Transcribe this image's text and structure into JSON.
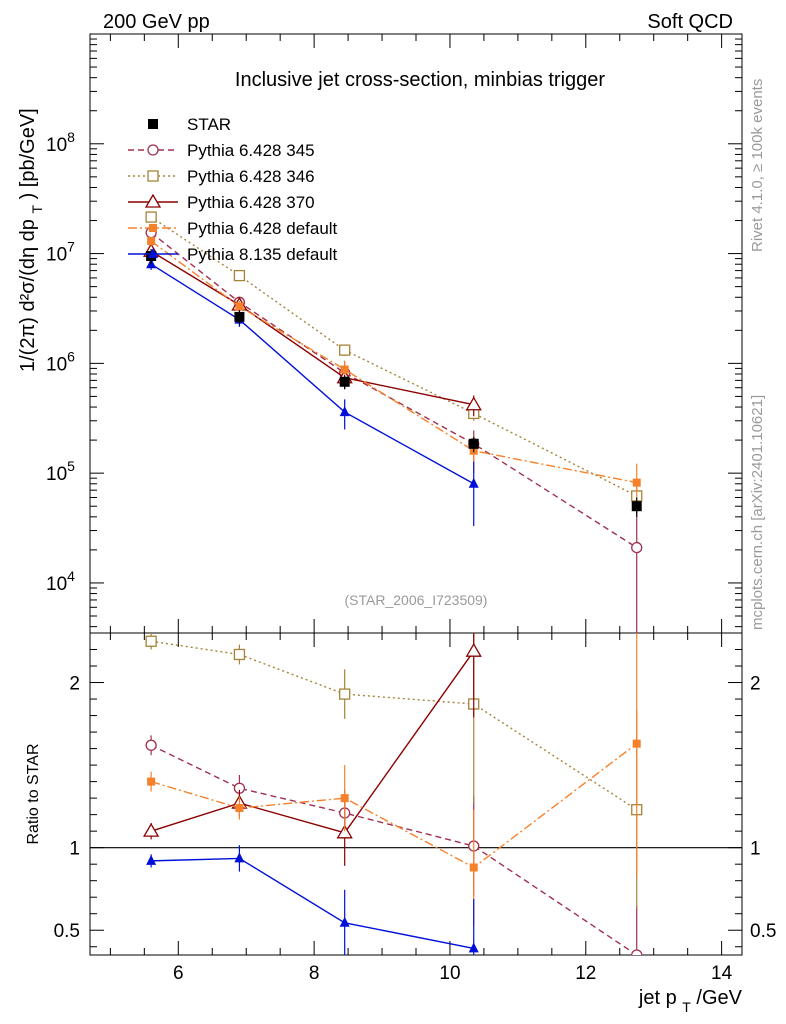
{
  "header": {
    "left": "200 GeV pp",
    "right": "Soft QCD"
  },
  "side_labels": {
    "rivet": "Rivet 4.1.0, ≥ 100k events",
    "mcplots": "mcplots.cern.ch [arXiv:2401.10621]"
  },
  "analysis_id": "(STAR_2006_I723509)",
  "colors": {
    "data": "#000000",
    "p345": "#a0304f",
    "p346": "#a68339",
    "p370": "#8b0000",
    "p6def": "#f7812a",
    "p8def": "#0010d8"
  },
  "chart_data": [
    {
      "type": "line",
      "title": "Inclusive jet cross-section, minbias trigger",
      "ylabel_prefix": "1/(2π)",
      "ylabel_main": "d²σ/(dη dp",
      "ylabel_sub": "T",
      "ylabel_suffix": ") [pb/GeV]",
      "yscale": "log",
      "xlim": [
        4.7,
        14.3
      ],
      "ylim": [
        3500,
        1000000000
      ],
      "yticks_labels": [
        {
          "v": 10000,
          "base": "10",
          "exp": "4"
        },
        {
          "v": 100000,
          "base": "10",
          "exp": "5"
        },
        {
          "v": 1000000,
          "base": "10",
          "exp": "6"
        },
        {
          "v": 10000000,
          "base": "10",
          "exp": "7"
        },
        {
          "v": 100000000,
          "base": "10",
          "exp": "8"
        }
      ],
      "legend_position": "top-left",
      "series": [
        {
          "key": "data",
          "name": "STAR",
          "marker": "filled-square",
          "dash": "none",
          "x": [
            5.6,
            6.9,
            8.45,
            10.35,
            12.75
          ],
          "y": [
            9500000,
            2650000,
            680000,
            185000,
            50000
          ],
          "err": [
            1500000,
            400000,
            100000,
            30000,
            10000
          ]
        },
        {
          "key": "p345",
          "name": "Pythia 6.428 345",
          "marker": "open-circle",
          "dash": "6,4",
          "x": [
            5.6,
            6.9,
            8.45,
            10.35,
            12.75
          ],
          "y": [
            15500000,
            3600000,
            820000,
            185000,
            21000
          ],
          "err": [
            1500000,
            450000,
            200000,
            60000,
            20000
          ]
        },
        {
          "key": "p346",
          "name": "Pythia 6.428 346",
          "marker": "open-square",
          "dash": "2,3",
          "x": [
            5.6,
            6.9,
            8.45,
            10.35,
            12.75
          ],
          "y": [
            21500000,
            6300000,
            1320000,
            350000,
            62000
          ],
          "err": [
            1000000,
            350000,
            150000,
            50000,
            20000
          ]
        },
        {
          "key": "p370",
          "name": "Pythia 6.428 370",
          "marker": "open-triangle",
          "dash": "none",
          "x": [
            5.6,
            6.9,
            8.45,
            10.35
          ],
          "y": [
            10500000,
            3400000,
            740000,
            420000
          ],
          "err": [
            800000,
            350000,
            150000,
            90000
          ]
        },
        {
          "key": "p6def",
          "name": "Pythia 6.428 default",
          "marker": "filled-square-small",
          "dash": "9,3,2,3",
          "x": [
            5.6,
            6.9,
            8.45,
            10.35,
            12.75
          ],
          "y": [
            13000000,
            3300000,
            880000,
            160000,
            82000
          ],
          "err": [
            1200000,
            400000,
            180000,
            60000,
            40000
          ]
        },
        {
          "key": "p8def",
          "name": "Pythia 8.135 default",
          "marker": "filled-triangle",
          "dash": "none",
          "x": [
            5.6,
            6.9,
            8.45,
            10.35
          ],
          "y": [
            8000000,
            2500000,
            360000,
            80000
          ],
          "err": [
            900000,
            350000,
            110000,
            47000
          ]
        }
      ]
    },
    {
      "type": "line",
      "ylabel": "Ratio to STAR",
      "xlabel_main": "jet p",
      "xlabel_sub": "T",
      "xlabel_suffix": "/GeV",
      "xlim": [
        4.7,
        14.3
      ],
      "ylim": [
        0.35,
        2.3
      ],
      "xticks": [
        "6",
        "8",
        "10",
        "12",
        "14"
      ],
      "yticks": [
        "0.5",
        "1",
        "2"
      ],
      "reference_line": 1.0,
      "series": [
        {
          "key": "p345",
          "name": "Pythia 6.428 345",
          "marker": "open-circle",
          "dash": "6,4",
          "x": [
            5.6,
            6.9,
            8.45,
            10.35,
            12.75
          ],
          "y": [
            1.62,
            1.36,
            1.21,
            1.01,
            0.35
          ],
          "err_lo": [
            0.06,
            0.08,
            0.14,
            0.3,
            0.3
          ],
          "err_hi": [
            0.06,
            0.08,
            0.14,
            0.3,
            0.3
          ]
        },
        {
          "key": "p346",
          "name": "Pythia 6.428 346",
          "marker": "open-square",
          "dash": "2,3",
          "x": [
            5.6,
            6.9,
            8.45,
            10.35,
            12.75
          ],
          "y": [
            2.25,
            2.17,
            1.93,
            1.87,
            1.23
          ],
          "err_lo": [
            0.05,
            0.06,
            0.15,
            0.6,
            0.6
          ],
          "err_hi": [
            0.05,
            0.06,
            0.15,
            0.6,
            0.6
          ]
        },
        {
          "key": "p370",
          "name": "Pythia 6.428 370",
          "marker": "open-triangle",
          "dash": "none",
          "x": [
            5.6,
            6.9,
            8.45,
            10.35
          ],
          "y": [
            1.1,
            1.27,
            1.09,
            2.19
          ],
          "err_lo": [
            0.05,
            0.08,
            0.2,
            0.4
          ],
          "err_hi": [
            0.05,
            0.08,
            0.2,
            0.4
          ]
        },
        {
          "key": "p6def",
          "name": "Pythia 6.428 default",
          "marker": "filled-square-small",
          "dash": "9,3,2,3",
          "x": [
            5.6,
            6.9,
            8.45,
            10.35,
            12.75
          ],
          "y": [
            1.4,
            1.24,
            1.3,
            0.88,
            1.63
          ],
          "err_lo": [
            0.06,
            0.07,
            0.2,
            0.35,
            0.8
          ],
          "err_hi": [
            0.06,
            0.07,
            0.2,
            0.35,
            0.8
          ]
        },
        {
          "key": "p8def",
          "name": "Pythia 8.135 default",
          "marker": "filled-triangle",
          "dash": "none",
          "x": [
            5.6,
            6.9,
            8.45,
            10.35
          ],
          "y": [
            0.92,
            0.935,
            0.545,
            0.39
          ],
          "err_lo": [
            0.04,
            0.08,
            0.2,
            0.3
          ],
          "err_hi": [
            0.04,
            0.08,
            0.2,
            0.3
          ]
        }
      ]
    }
  ]
}
